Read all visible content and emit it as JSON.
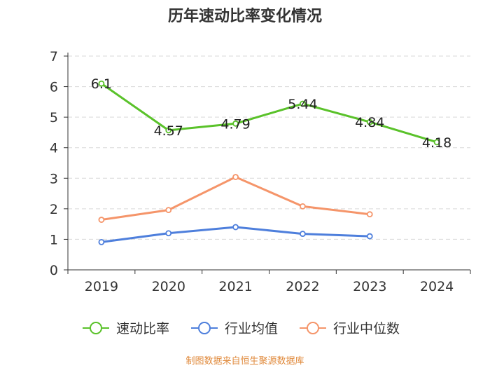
{
  "chart_data": {
    "type": "line",
    "title": "历年速动比率变化情况",
    "categories": [
      "2019",
      "2020",
      "2021",
      "2022",
      "2023",
      "2024"
    ],
    "ylim": [
      0,
      7
    ],
    "yticks": [
      0,
      1,
      2,
      3,
      4,
      5,
      6,
      7
    ],
    "grid": true,
    "legend_position": "bottom",
    "series": [
      {
        "name": "速动比率",
        "color": "#5ac22a",
        "values": [
          6.1,
          4.57,
          4.79,
          5.44,
          4.84,
          4.18
        ],
        "labels": [
          "6.1",
          "4.57",
          "4.79",
          "5.44",
          "4.84",
          "4.18"
        ]
      },
      {
        "name": "行业均值",
        "color": "#4e7fdc",
        "values": [
          0.91,
          1.2,
          1.4,
          1.18,
          1.1,
          null
        ]
      },
      {
        "name": "行业中位数",
        "color": "#f5956a",
        "values": [
          1.64,
          1.96,
          3.04,
          2.08,
          1.82,
          null
        ]
      }
    ],
    "source": "制图数据来自恒生聚源数据库"
  }
}
